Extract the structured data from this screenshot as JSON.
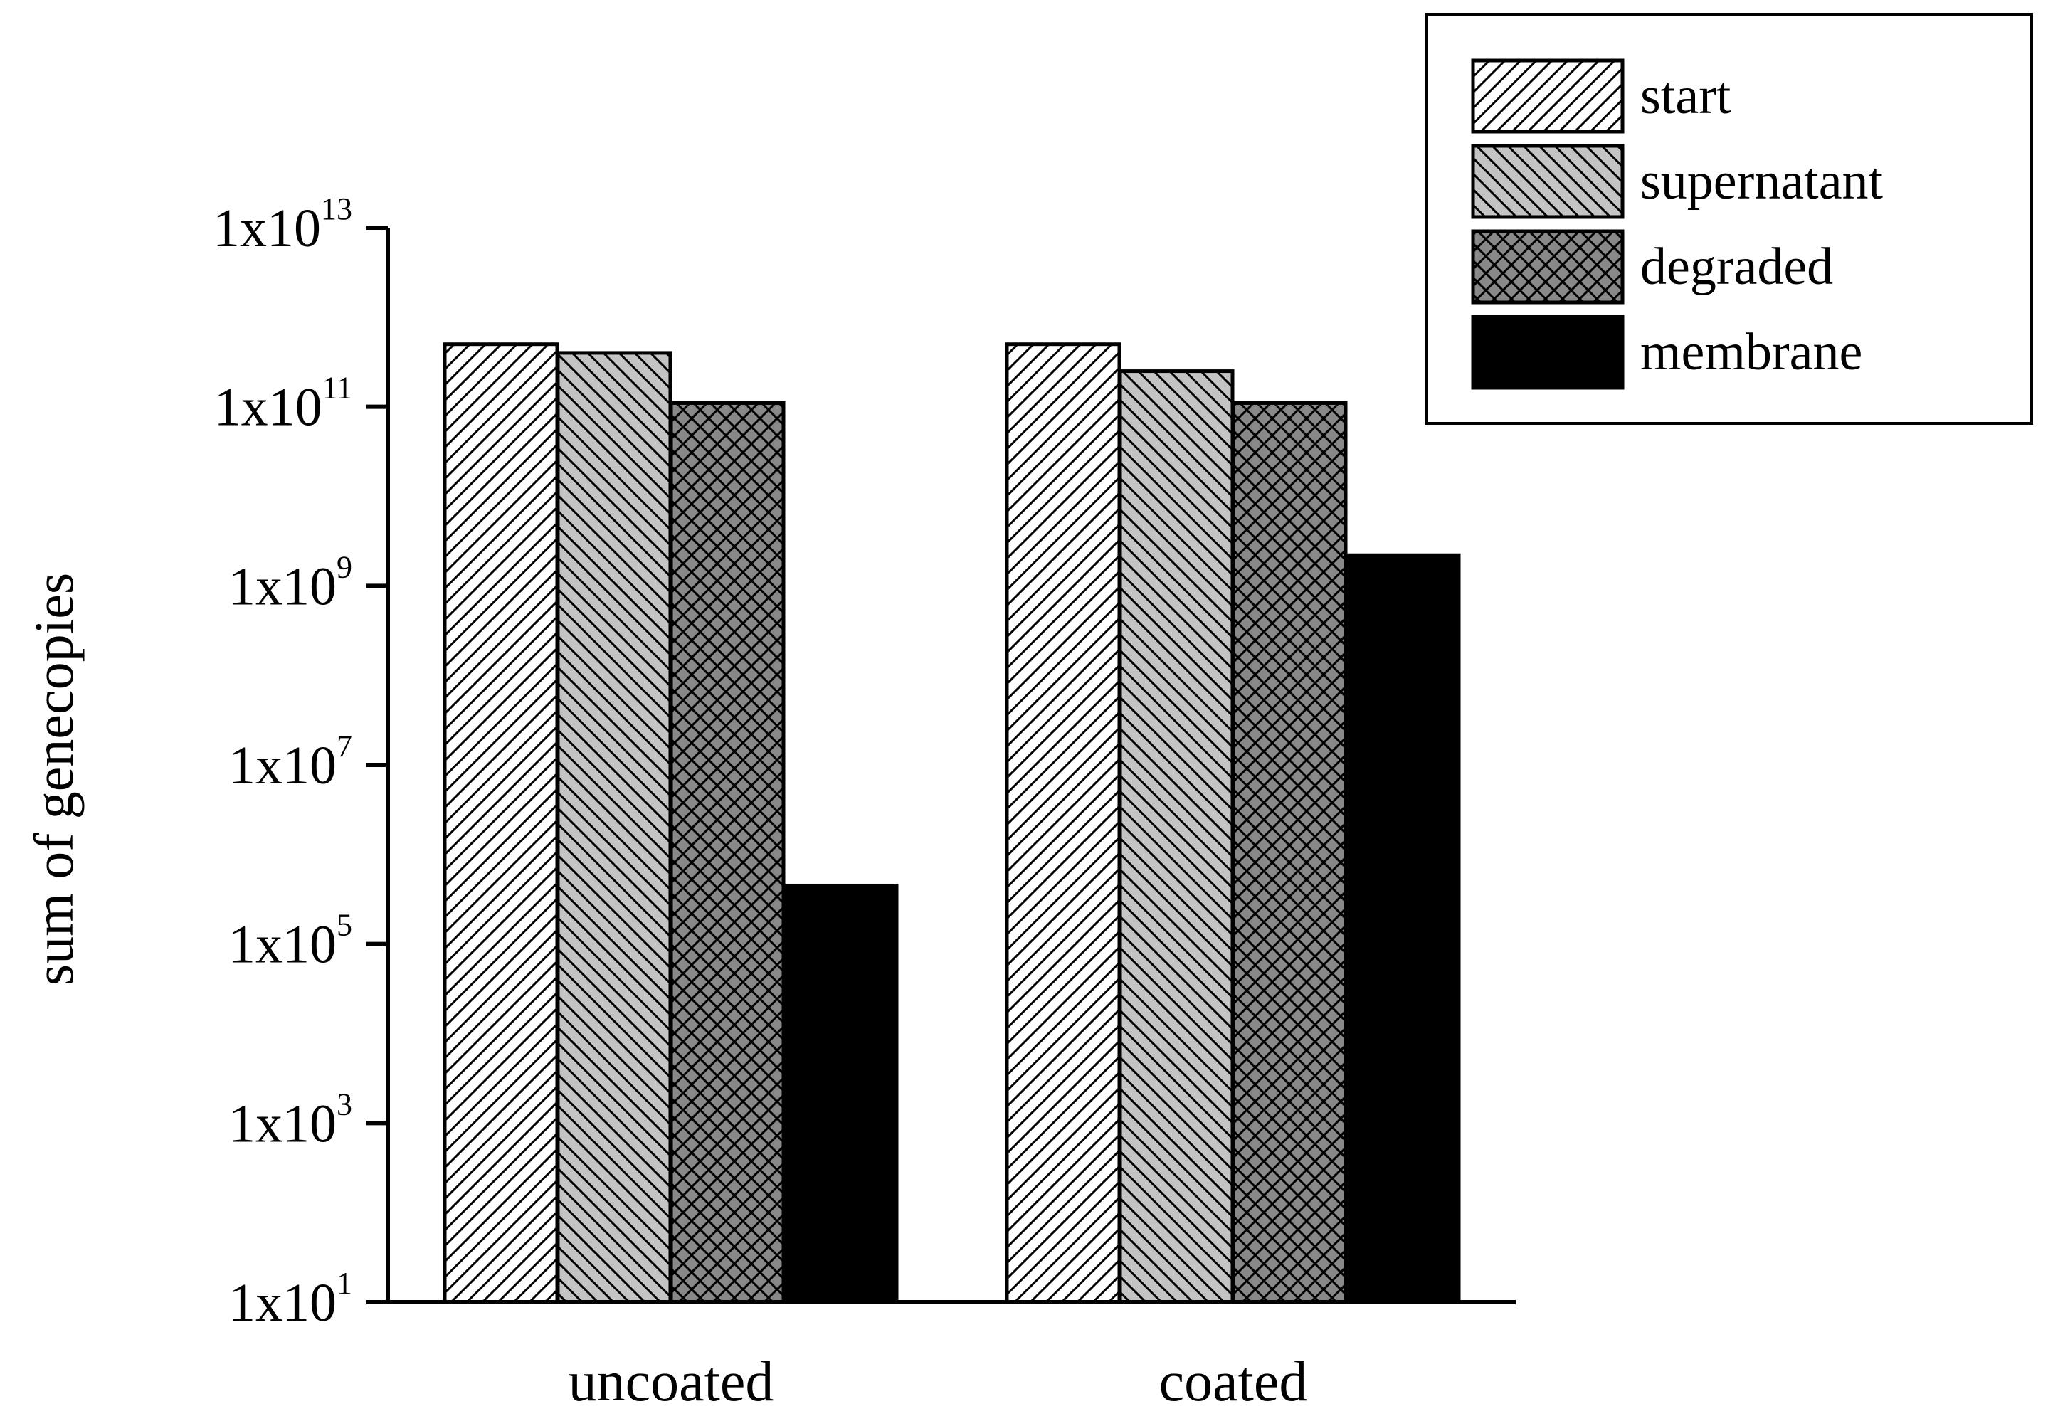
{
  "chart_data": {
    "type": "bar",
    "scale": "log",
    "categories": [
      "uncoated",
      "coated"
    ],
    "series": [
      {
        "name": "start",
        "values": [
          500000000000,
          500000000000
        ],
        "fill": "#ffffff",
        "pattern": "diagonal-up-hatch"
      },
      {
        "name": "supernatant",
        "values": [
          400000000000,
          250000000000
        ],
        "fill": "#c4c4c4",
        "pattern": "diagonal-down-hatch"
      },
      {
        "name": "degraded",
        "values": [
          110000000000,
          110000000000
        ],
        "fill": "#888888",
        "pattern": "cross-hatch"
      },
      {
        "name": "membrane",
        "values": [
          450000,
          2200000000
        ],
        "fill": "#000000",
        "pattern": "solid"
      }
    ],
    "ylabel": "sum of genecopies",
    "xlabel": "",
    "ylim": [
      10,
      10000000000000
    ],
    "y_ticks": [
      {
        "value": 10,
        "base": "1x10",
        "exp": "1"
      },
      {
        "value": 1000,
        "base": "1x10",
        "exp": "3"
      },
      {
        "value": 100000,
        "base": "1x10",
        "exp": "5"
      },
      {
        "value": 10000000,
        "base": "1x10",
        "exp": "7"
      },
      {
        "value": 1000000000,
        "base": "1x10",
        "exp": "9"
      },
      {
        "value": 100000000000,
        "base": "1x10",
        "exp": "11"
      },
      {
        "value": 10000000000000,
        "base": "1x10",
        "exp": "13"
      }
    ],
    "legend_position": "top-right",
    "grid": false
  }
}
